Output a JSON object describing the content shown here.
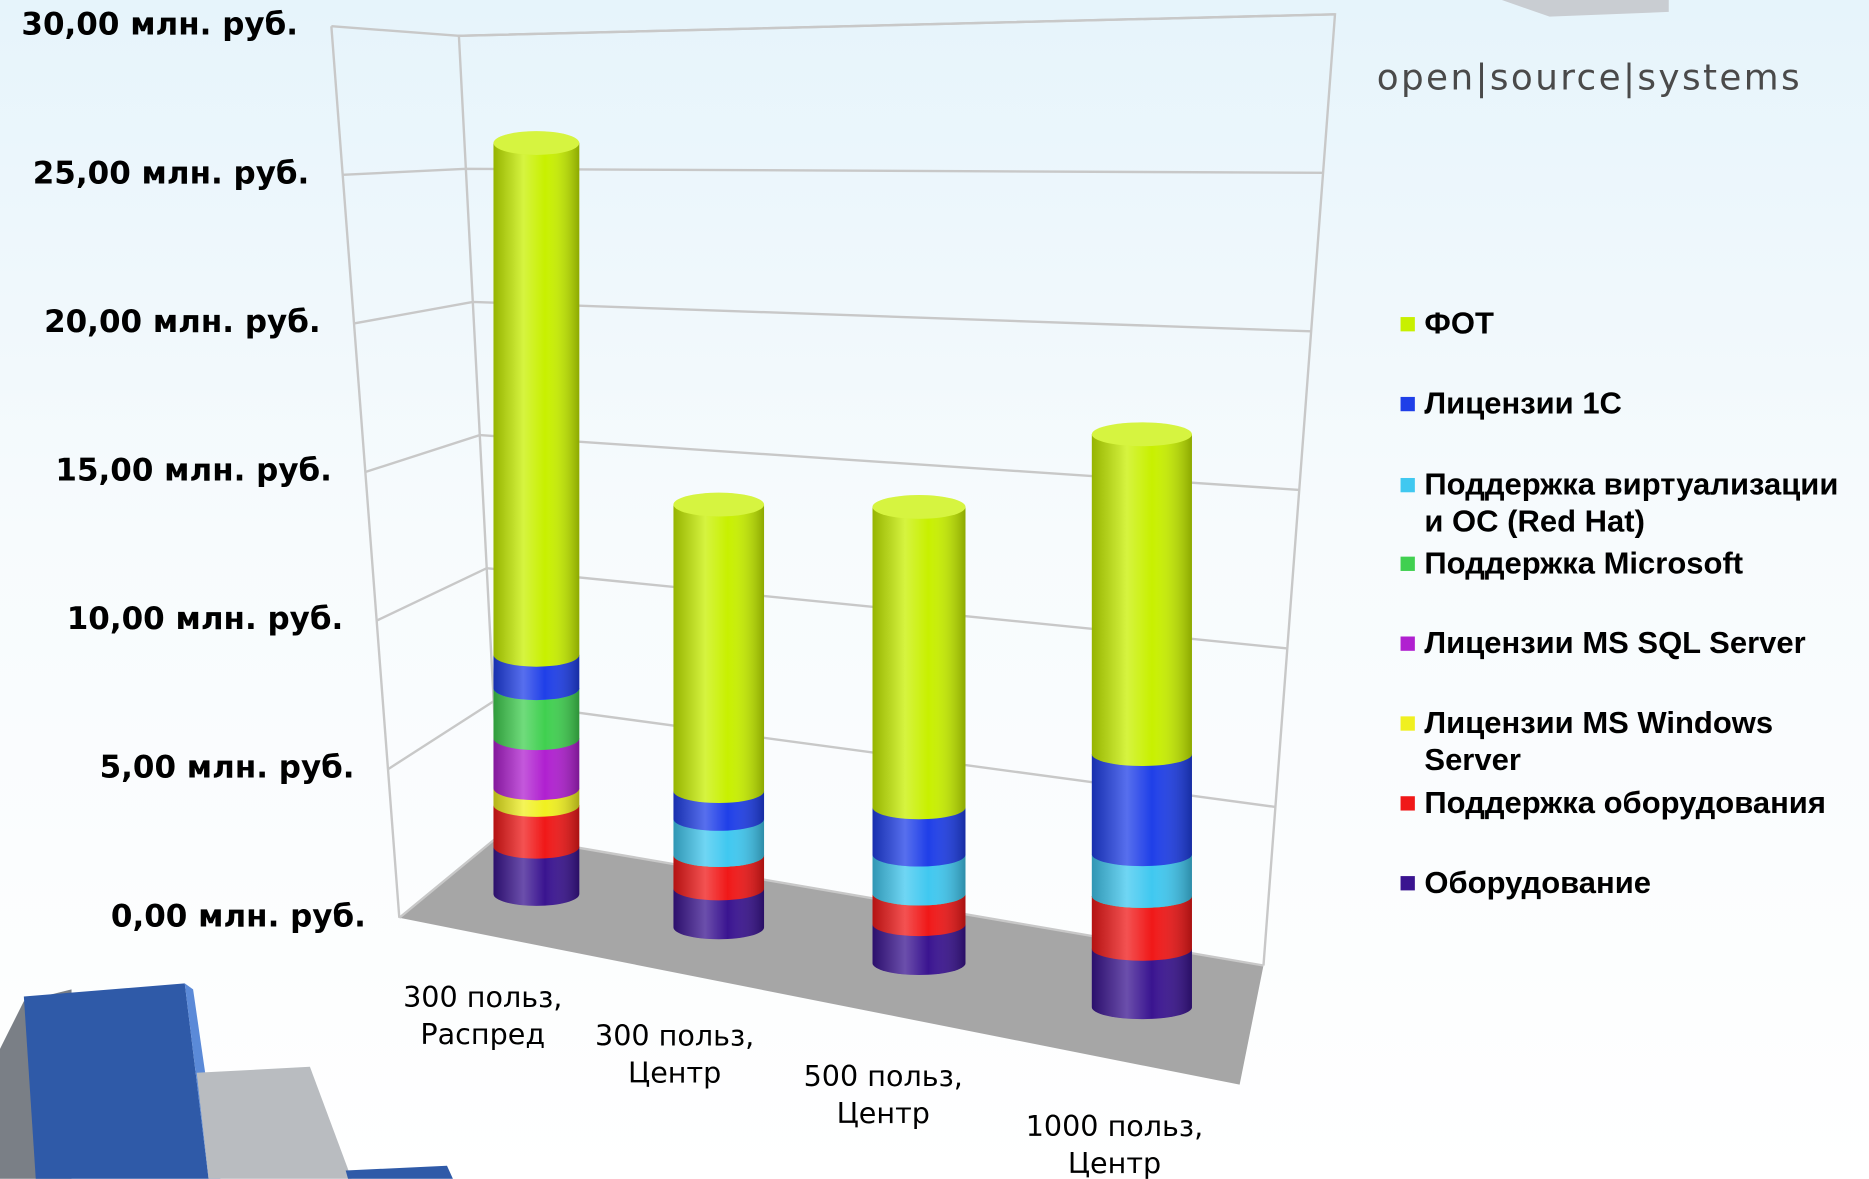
{
  "logo": "open|source|systems",
  "chart_data": {
    "type": "bar3d-stacked",
    "categories": [
      "300 польз, Распред",
      "300 польз, Центр",
      "500 польз, Центр",
      "1000 польз, Центр"
    ],
    "series": [
      {
        "name": "ФОТ",
        "color": "#c8f000",
        "values": [
          18.4,
          10.3,
          10.8,
          11.5
        ]
      },
      {
        "name": "Лицензии 1С",
        "color": "#1f3fe8",
        "values": [
          1.2,
          1.0,
          1.7,
          3.6
        ]
      },
      {
        "name": "Поддержка виртуализации и ОС (Red Hat)",
        "color": "#40c8f0",
        "values": [
          0,
          1.3,
          1.4,
          1.5
        ]
      },
      {
        "name": "Поддержка Microsoft",
        "color": "#40d050",
        "values": [
          1.8,
          0,
          0,
          0
        ]
      },
      {
        "name": "Лицензии MS SQL Server",
        "color": "#b020d0",
        "values": [
          1.8,
          0,
          0,
          0
        ]
      },
      {
        "name": "Лицензии MS Windows Server",
        "color": "#f0f020",
        "values": [
          0.6,
          0,
          0,
          0
        ]
      },
      {
        "name": "Поддержка оборудования",
        "color": "#f01818",
        "values": [
          1.5,
          1.2,
          1.1,
          1.9
        ]
      },
      {
        "name": "Оборудование",
        "color": "#3a1490",
        "values": [
          1.7,
          1.4,
          1.4,
          2.1
        ]
      }
    ],
    "ylim": [
      0,
      30
    ],
    "yticks": [
      {
        "value": 0,
        "label": "0,00 млн. руб."
      },
      {
        "value": 5,
        "label": "5,00 млн. руб."
      },
      {
        "value": 10,
        "label": "10,00 млн. руб."
      },
      {
        "value": 15,
        "label": "15,00 млн. руб."
      },
      {
        "value": 20,
        "label": "20,00 млн. руб."
      },
      {
        "value": 25,
        "label": "25,00 млн. руб."
      },
      {
        "value": 30,
        "label": "30,00 млн. руб."
      }
    ],
    "grid": true,
    "legend": "right"
  }
}
